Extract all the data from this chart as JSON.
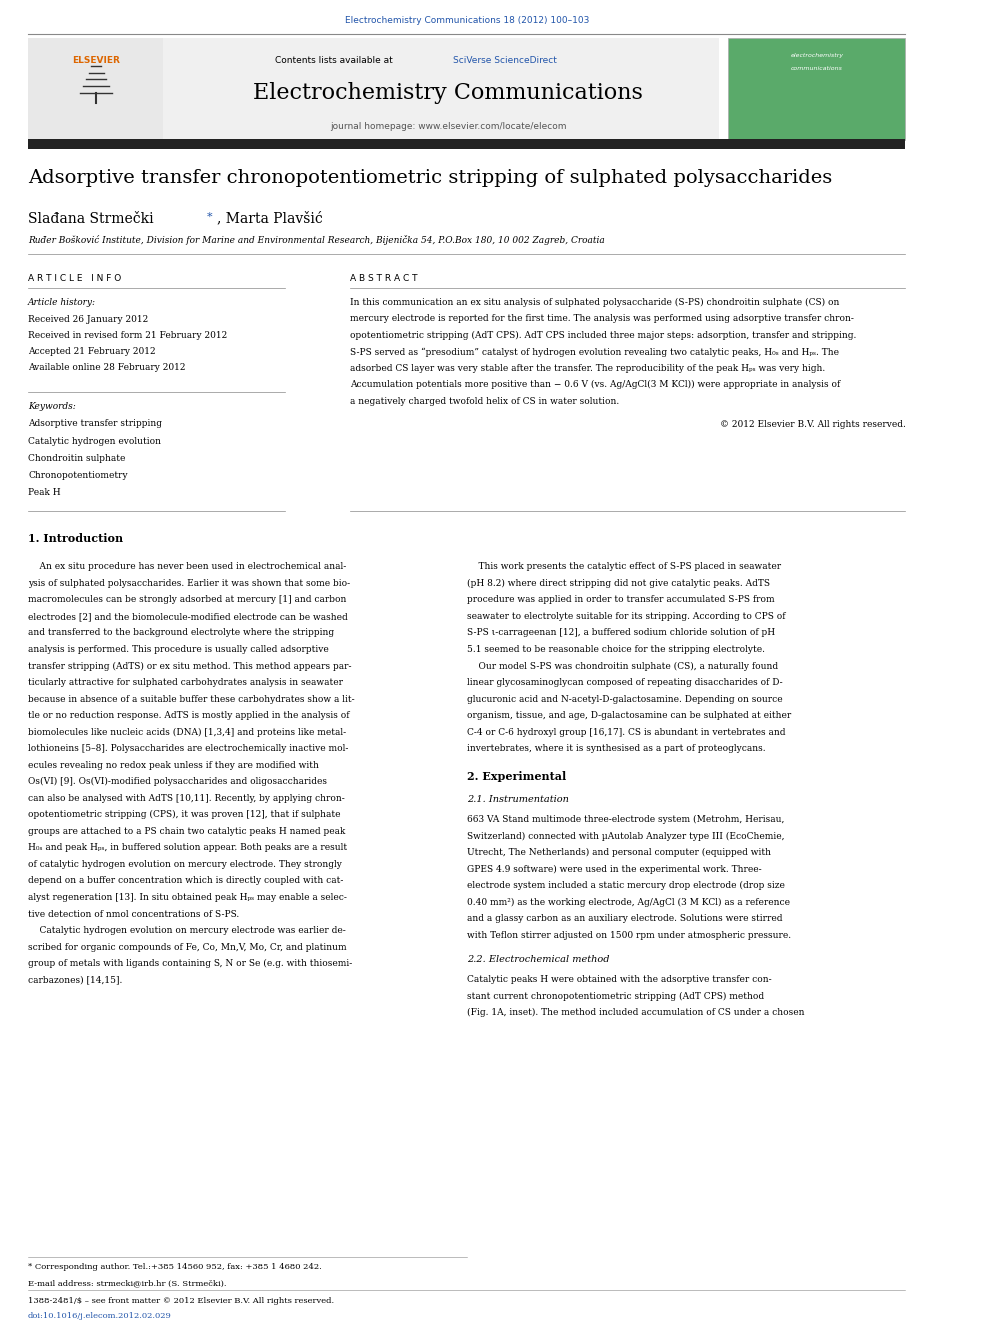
{
  "journal_ref": "Electrochemistry Communications 18 (2012) 100–103",
  "journal_ref_color": "#2255aa",
  "sciverse_color": "#2255aa",
  "journal_title": "Electrochemistry Communications",
  "journal_homepage": "journal homepage: www.elsevier.com/locate/elecom",
  "paper_title": "Adsorptive transfer chronopotentiometric stripping of sulphated polysaccharides",
  "affiliation": "Ruđer Bošković Institute, Division for Marine and Environmental Research, Bijenička 54, P.O.Box 180, 10 002 Zagreb, Croatia",
  "article_info_header": "A R T I C L E   I N F O",
  "article_history_label": "Article history:",
  "received": "Received 26 January 2012",
  "received_revised": "Received in revised form 21 February 2012",
  "accepted": "Accepted 21 February 2012",
  "available_online": "Available online 28 February 2012",
  "keywords_label": "Keywords:",
  "keywords": [
    "Adsorptive transfer stripping",
    "Catalytic hydrogen evolution",
    "Chondroitin sulphate",
    "Chronopotentiometry",
    "Peak H"
  ],
  "abstract_header": "A B S T R A C T",
  "copyright": "© 2012 Elsevier B.V. All rights reserved.",
  "intro_header": "1. Introduction",
  "experimental_header": "2. Experimental",
  "exp_sub_header": "2.1. Instrumentation",
  "method_sub_header": "2.2. Electrochemical method",
  "footer_text1": "* Corresponding author. Tel.:+385 14560 952, fax: +385 1 4680 242.",
  "footer_text2": "E-mail address: strmecki@irb.hr (S. Strmečki).",
  "footer_issn": "1388-2481/$ – see front matter © 2012 Elsevier B.V. All rights reserved.",
  "footer_doi": "doi:10.1016/j.elecom.2012.02.029",
  "bg_color": "#ffffff",
  "dark_bar_color": "#222222",
  "separator_color": "#555555",
  "abstract_lines": [
    "In this communication an ex situ analysis of sulphated polysaccharide (S-PS) chondroitin sulphate (CS) on",
    "mercury electrode is reported for the first time. The analysis was performed using adsorptive transfer chron-",
    "opotentiometric stripping (AdT CPS). AdT CPS included three major steps: adsorption, transfer and stripping.",
    "S-PS served as “presodium” catalyst of hydrogen evolution revealing two catalytic peaks, H₀ₛ and Hₚₛ. The",
    "adsorbed CS layer was very stable after the transfer. The reproducibility of the peak Hₚₛ was very high.",
    "Accumulation potentials more positive than − 0.6 V (vs. Ag/AgCl(3 M KCl)) were appropriate in analysis of",
    "a negatively charged twofold helix of CS in water solution."
  ],
  "intro_left_lines": [
    "    An ex situ procedure has never been used in electrochemical anal-",
    "ysis of sulphated polysaccharides. Earlier it was shown that some bio-",
    "macromolecules can be strongly adsorbed at mercury [1] and carbon",
    "electrodes [2] and the biomolecule-modified electrode can be washed",
    "and transferred to the background electrolyte where the stripping",
    "analysis is performed. This procedure is usually called adsorptive",
    "transfer stripping (AdTS) or ex situ method. This method appears par-",
    "ticularly attractive for sulphated carbohydrates analysis in seawater",
    "because in absence of a suitable buffer these carbohydrates show a lit-",
    "tle or no reduction response. AdTS is mostly applied in the analysis of",
    "biomolecules like nucleic acids (DNA) [1,3,4] and proteins like metal-",
    "lothioneins [5–8]. Polysaccharides are electrochemically inactive mol-",
    "ecules revealing no redox peak unless if they are modified with",
    "Os(VI) [9]. Os(VI)-modified polysaccharides and oligosaccharides",
    "can also be analysed with AdTS [10,11]. Recently, by applying chron-",
    "opotentiometric stripping (CPS), it was proven [12], that if sulphate",
    "groups are attached to a PS chain two catalytic peaks H named peak",
    "H₀ₛ and peak Hₚₛ, in buffered solution appear. Both peaks are a result",
    "of catalytic hydrogen evolution on mercury electrode. They strongly",
    "depend on a buffer concentration which is directly coupled with cat-",
    "alyst regeneration [13]. In situ obtained peak Hₚₛ may enable a selec-",
    "tive detection of nmol concentrations of S-PS.",
    "    Catalytic hydrogen evolution on mercury electrode was earlier de-",
    "scribed for organic compounds of Fe, Co, Mn,V, Mo, Cr, and platinum",
    "group of metals with ligands containing S, N or Se (e.g. with thiosemi-",
    "carbazones) [14,15]."
  ],
  "intro_right_lines": [
    "    This work presents the catalytic effect of S-PS placed in seawater",
    "(pH 8.2) where direct stripping did not give catalytic peaks. AdTS",
    "procedure was applied in order to transfer accumulated S-PS from",
    "seawater to electrolyte suitable for its stripping. According to CPS of",
    "S-PS ι-carrageenan [12], a buffered sodium chloride solution of pH",
    "5.1 seemed to be reasonable choice for the stripping electrolyte.",
    "    Our model S-PS was chondroitin sulphate (CS), a naturally found",
    "linear glycosaminoglycan composed of repeating disaccharides of D-",
    "glucuronic acid and N-acetyl-D-galactosamine. Depending on source",
    "organism, tissue, and age, D-galactosamine can be sulphated at either",
    "C-4 or C-6 hydroxyl group [16,17]. CS is abundant in vertebrates and",
    "invertebrates, where it is synthesised as a part of proteoglycans."
  ],
  "exp_lines": [
    "663 VA Stand multimode three-electrode system (Metrohm, Herisau,",
    "Switzerland) connected with µAutolab Analyzer type III (EcoChemie,",
    "Utrecht, The Netherlands) and personal computer (equipped with",
    "GPES 4.9 software) were used in the experimental work. Three-",
    "electrode system included a static mercury drop electrode (drop size",
    "0.40 mm²) as the working electrode, Ag/AgCl (3 M KCl) as a reference",
    "and a glassy carbon as an auxiliary electrode. Solutions were stirred",
    "with Teflon stirrer adjusted on 1500 rpm under atmospheric pressure."
  ],
  "method_lines": [
    "Catalytic peaks H were obtained with the adsorptive transfer con-",
    "stant current chronopotentiometric stripping (AdT CPS) method",
    "(Fig. 1A, inset). The method included accumulation of CS under a chosen"
  ]
}
